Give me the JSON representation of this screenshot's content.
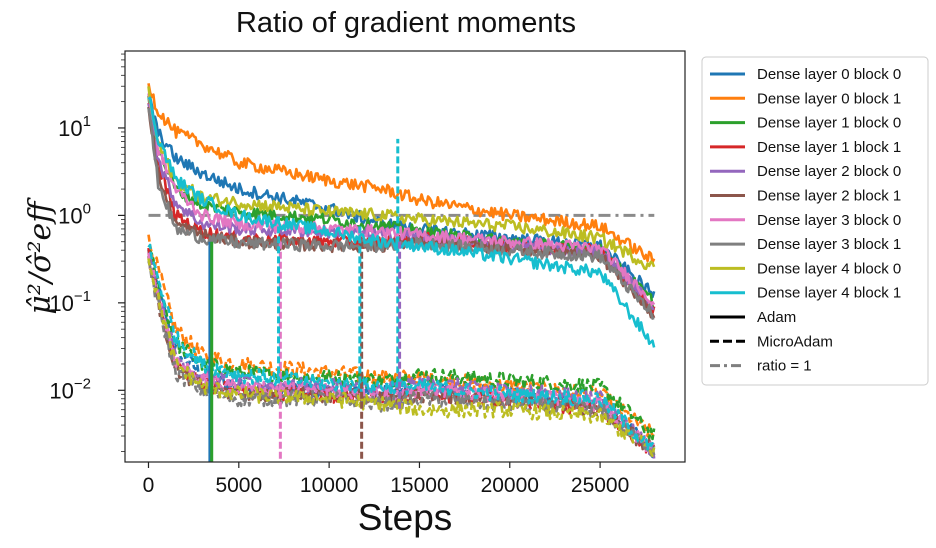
{
  "chart_data": {
    "type": "line",
    "title": "Ratio of gradient moments",
    "xlabel": "Steps",
    "ylabel": "μ̂²/σ̂²eff",
    "yscale": "log",
    "xlim": [
      -1300,
      29700
    ],
    "ylim_log10": [
      -2.82,
      1.88
    ],
    "x_ticks": [
      0,
      5000,
      10000,
      15000,
      20000,
      25000
    ],
    "x_tick_labels": [
      "0",
      "5000",
      "10000",
      "15000",
      "20000",
      "25000"
    ],
    "y_ticks_log10": [
      1,
      0,
      -1,
      -2
    ],
    "y_tick_labels": [
      "10^1",
      "10^0",
      "10^-1",
      "10^-2"
    ],
    "grid": false,
    "legend_position": "outside-right",
    "legend": [
      {
        "label": "Dense layer 0 block 0",
        "color": "#1f77b4",
        "style": "solid"
      },
      {
        "label": "Dense layer 0 block 1",
        "color": "#ff7f0e",
        "style": "solid"
      },
      {
        "label": "Dense layer 1 block 0",
        "color": "#2ca02c",
        "style": "solid"
      },
      {
        "label": "Dense layer 1 block 1",
        "color": "#d62728",
        "style": "solid"
      },
      {
        "label": "Dense layer 2 block 0",
        "color": "#9467bd",
        "style": "solid"
      },
      {
        "label": "Dense layer 2 block 1",
        "color": "#8c564b",
        "style": "solid"
      },
      {
        "label": "Dense layer 3 block 0",
        "color": "#e377c2",
        "style": "solid"
      },
      {
        "label": "Dense layer 3 block 1",
        "color": "#7f7f7f",
        "style": "solid"
      },
      {
        "label": "Dense layer 4 block 0",
        "color": "#bcbd22",
        "style": "solid"
      },
      {
        "label": "Dense layer 4 block 1",
        "color": "#17becf",
        "style": "solid"
      },
      {
        "label": "Adam",
        "color": "#000000",
        "style": "solid"
      },
      {
        "label": "MicroAdam",
        "color": "#000000",
        "style": "dashed"
      },
      {
        "label": "ratio = 1",
        "color": "#7f7f7f",
        "style": "dashdot"
      }
    ],
    "reference_line": {
      "label": "ratio = 1",
      "y": 1.0,
      "x_range": [
        0,
        28000
      ],
      "color": "#7f7f7f"
    },
    "adam_series": [
      {
        "name": "Dense layer 0 block 0",
        "color": "#1f77b4",
        "points": [
          [
            0,
            25
          ],
          [
            500,
            9
          ],
          [
            1500,
            4.5
          ],
          [
            3000,
            3
          ],
          [
            5000,
            2
          ],
          [
            10000,
            1.2
          ],
          [
            13000,
            0.8
          ],
          [
            15000,
            0.7
          ],
          [
            20000,
            0.55
          ],
          [
            25000,
            0.45
          ],
          [
            28000,
            0.12
          ]
        ]
      },
      {
        "name": "Dense layer 0 block 1",
        "color": "#ff7f0e",
        "points": [
          [
            0,
            33
          ],
          [
            500,
            16
          ],
          [
            1500,
            9
          ],
          [
            3000,
            6.5
          ],
          [
            5000,
            4
          ],
          [
            8000,
            3
          ],
          [
            10000,
            2.5
          ],
          [
            13000,
            2
          ],
          [
            15000,
            1.5
          ],
          [
            20000,
            1
          ],
          [
            25000,
            0.75
          ],
          [
            28000,
            0.3
          ]
        ]
      },
      {
        "name": "Dense layer 1 block 0",
        "color": "#2ca02c",
        "points": [
          [
            0,
            22
          ],
          [
            500,
            6
          ],
          [
            1500,
            2
          ],
          [
            3000,
            1.3
          ],
          [
            5000,
            1.1
          ],
          [
            10000,
            0.9
          ],
          [
            13000,
            0.75
          ],
          [
            15000,
            0.65
          ],
          [
            20000,
            0.5
          ],
          [
            25000,
            0.4
          ],
          [
            28000,
            0.1
          ]
        ]
      },
      {
        "name": "Dense layer 1 block 1",
        "color": "#d62728",
        "points": [
          [
            0,
            20
          ],
          [
            500,
            4
          ],
          [
            1500,
            1
          ],
          [
            3000,
            0.65
          ],
          [
            5000,
            0.55
          ],
          [
            10000,
            0.5
          ],
          [
            13000,
            0.5
          ],
          [
            15000,
            0.55
          ],
          [
            20000,
            0.45
          ],
          [
            25000,
            0.4
          ],
          [
            28000,
            0.08
          ]
        ]
      },
      {
        "name": "Dense layer 2 block 0",
        "color": "#9467bd",
        "points": [
          [
            0,
            21
          ],
          [
            500,
            4.5
          ],
          [
            1500,
            1.4
          ],
          [
            3000,
            0.8
          ],
          [
            5000,
            0.7
          ],
          [
            10000,
            0.65
          ],
          [
            13000,
            0.6
          ],
          [
            15000,
            0.55
          ],
          [
            20000,
            0.45
          ],
          [
            25000,
            0.38
          ],
          [
            28000,
            0.09
          ]
        ]
      },
      {
        "name": "Dense layer 2 block 1",
        "color": "#8c564b",
        "points": [
          [
            0,
            19
          ],
          [
            500,
            3
          ],
          [
            1500,
            0.8
          ],
          [
            3000,
            0.6
          ],
          [
            5000,
            0.5
          ],
          [
            10000,
            0.45
          ],
          [
            13000,
            0.45
          ],
          [
            15000,
            0.5
          ],
          [
            20000,
            0.42
          ],
          [
            25000,
            0.35
          ],
          [
            28000,
            0.07
          ]
        ]
      },
      {
        "name": "Dense layer 3 block 0",
        "color": "#e377c2",
        "points": [
          [
            0,
            24
          ],
          [
            500,
            6
          ],
          [
            1500,
            2
          ],
          [
            3000,
            1
          ],
          [
            5000,
            0.8
          ],
          [
            10000,
            0.7
          ],
          [
            13000,
            0.65
          ],
          [
            15000,
            0.6
          ],
          [
            20000,
            0.5
          ],
          [
            25000,
            0.42
          ],
          [
            28000,
            0.1
          ]
        ]
      },
      {
        "name": "Dense layer 3 block 1",
        "color": "#7f7f7f",
        "points": [
          [
            0,
            18
          ],
          [
            500,
            2.5
          ],
          [
            1500,
            0.7
          ],
          [
            3000,
            0.55
          ],
          [
            5000,
            0.48
          ],
          [
            10000,
            0.45
          ],
          [
            13000,
            0.45
          ],
          [
            15000,
            0.48
          ],
          [
            20000,
            0.4
          ],
          [
            25000,
            0.34
          ],
          [
            28000,
            0.07
          ]
        ]
      },
      {
        "name": "Dense layer 4 block 0",
        "color": "#bcbd22",
        "points": [
          [
            0,
            26
          ],
          [
            500,
            7
          ],
          [
            1500,
            2.5
          ],
          [
            3000,
            1.6
          ],
          [
            5000,
            1.4
          ],
          [
            10000,
            1.1
          ],
          [
            13000,
            1
          ],
          [
            15000,
            0.9
          ],
          [
            20000,
            0.75
          ],
          [
            25000,
            0.55
          ],
          [
            28000,
            0.25
          ]
        ]
      },
      {
        "name": "Dense layer 4 block 1",
        "color": "#17becf",
        "points": [
          [
            0,
            24
          ],
          [
            500,
            8
          ],
          [
            1500,
            2.6
          ],
          [
            3000,
            1.5
          ],
          [
            5000,
            1
          ],
          [
            10000,
            0.65
          ],
          [
            13000,
            0.5
          ],
          [
            15000,
            0.45
          ],
          [
            20000,
            0.32
          ],
          [
            25000,
            0.22
          ],
          [
            28000,
            0.032
          ]
        ]
      }
    ],
    "microadam_series": [
      {
        "name": "Dense layer 0 block 0",
        "color": "#1f77b4",
        "points": [
          [
            0,
            0.38
          ],
          [
            500,
            0.15
          ],
          [
            1500,
            0.03
          ],
          [
            3000,
            0.015
          ],
          [
            5000,
            0.011
          ],
          [
            10000,
            0.01
          ],
          [
            13000,
            0.01
          ],
          [
            15000,
            0.011
          ],
          [
            20000,
            0.009
          ],
          [
            25000,
            0.007
          ],
          [
            28000,
            0.002
          ]
        ]
      },
      {
        "name": "Dense layer 0 block 1",
        "color": "#ff7f0e",
        "points": [
          [
            0,
            0.52
          ],
          [
            500,
            0.25
          ],
          [
            1500,
            0.05
          ],
          [
            3000,
            0.025
          ],
          [
            5000,
            0.02
          ],
          [
            10000,
            0.016
          ],
          [
            13000,
            0.014
          ],
          [
            15000,
            0.014
          ],
          [
            20000,
            0.011
          ],
          [
            25000,
            0.009
          ],
          [
            28000,
            0.003
          ]
        ]
      },
      {
        "name": "Dense layer 1 block 0",
        "color": "#2ca02c",
        "points": [
          [
            0,
            0.42
          ],
          [
            500,
            0.18
          ],
          [
            1500,
            0.035
          ],
          [
            3000,
            0.02
          ],
          [
            5000,
            0.016
          ],
          [
            10000,
            0.014
          ],
          [
            13000,
            0.013
          ],
          [
            15000,
            0.015
          ],
          [
            20000,
            0.013
          ],
          [
            25000,
            0.011
          ],
          [
            28000,
            0.003
          ]
        ]
      },
      {
        "name": "Dense layer 1 block 1",
        "color": "#d62728",
        "points": [
          [
            0,
            0.35
          ],
          [
            500,
            0.12
          ],
          [
            1500,
            0.02
          ],
          [
            3000,
            0.012
          ],
          [
            5000,
            0.01
          ],
          [
            10000,
            0.009
          ],
          [
            13000,
            0.008
          ],
          [
            15000,
            0.009
          ],
          [
            20000,
            0.008
          ],
          [
            25000,
            0.006
          ],
          [
            28000,
            0.002
          ]
        ]
      },
      {
        "name": "Dense layer 2 block 0",
        "color": "#9467bd",
        "points": [
          [
            0,
            0.4
          ],
          [
            500,
            0.14
          ],
          [
            1500,
            0.025
          ],
          [
            3000,
            0.014
          ],
          [
            5000,
            0.012
          ],
          [
            10000,
            0.011
          ],
          [
            13000,
            0.01
          ],
          [
            15000,
            0.012
          ],
          [
            20000,
            0.01
          ],
          [
            25000,
            0.008
          ],
          [
            28000,
            0.002
          ]
        ]
      },
      {
        "name": "Dense layer 2 block 1",
        "color": "#8c564b",
        "points": [
          [
            0,
            0.33
          ],
          [
            500,
            0.11
          ],
          [
            1500,
            0.018
          ],
          [
            3000,
            0.011
          ],
          [
            5000,
            0.009
          ],
          [
            10000,
            0.009
          ],
          [
            13000,
            0.008
          ],
          [
            15000,
            0.009
          ],
          [
            20000,
            0.008
          ],
          [
            25000,
            0.006
          ],
          [
            28000,
            0.002
          ]
        ]
      },
      {
        "name": "Dense layer 3 block 0",
        "color": "#e377c2",
        "points": [
          [
            0,
            0.37
          ],
          [
            500,
            0.13
          ],
          [
            1500,
            0.022
          ],
          [
            3000,
            0.013
          ],
          [
            5000,
            0.011
          ],
          [
            10000,
            0.01
          ],
          [
            13000,
            0.009
          ],
          [
            15000,
            0.01
          ],
          [
            20000,
            0.009
          ],
          [
            25000,
            0.007
          ],
          [
            28000,
            0.002
          ]
        ]
      },
      {
        "name": "Dense layer 3 block 1",
        "color": "#7f7f7f",
        "points": [
          [
            0,
            0.3
          ],
          [
            500,
            0.1
          ],
          [
            1500,
            0.016
          ],
          [
            3000,
            0.01
          ],
          [
            5000,
            0.008
          ],
          [
            10000,
            0.008
          ],
          [
            13000,
            0.007
          ],
          [
            15000,
            0.008
          ],
          [
            20000,
            0.007
          ],
          [
            25000,
            0.006
          ],
          [
            28000,
            0.002
          ]
        ]
      },
      {
        "name": "Dense layer 4 block 0",
        "color": "#bcbd22",
        "points": [
          [
            0,
            0.34
          ],
          [
            500,
            0.12
          ],
          [
            1500,
            0.02
          ],
          [
            3000,
            0.011
          ],
          [
            5000,
            0.009
          ],
          [
            10000,
            0.008
          ],
          [
            13000,
            0.007
          ],
          [
            15000,
            0.006
          ],
          [
            20000,
            0.006
          ],
          [
            25000,
            0.005
          ],
          [
            28000,
            0.002
          ]
        ]
      },
      {
        "name": "Dense layer 4 block 1",
        "color": "#17becf",
        "points": [
          [
            0,
            0.45
          ],
          [
            500,
            0.2
          ],
          [
            1500,
            0.04
          ],
          [
            3000,
            0.02
          ],
          [
            5000,
            0.015
          ],
          [
            10000,
            0.012
          ],
          [
            13000,
            0.011
          ],
          [
            15000,
            0.011
          ],
          [
            20000,
            0.009
          ],
          [
            25000,
            0.008
          ],
          [
            28000,
            0.002
          ]
        ]
      }
    ],
    "spikes": [
      {
        "x": 3400,
        "y": 0.00016,
        "color": "#1f77b4",
        "style": "solid"
      },
      {
        "x": 3500,
        "y": 0.00016,
        "color": "#2ca02c",
        "style": "solid"
      },
      {
        "x": 7300,
        "y": 0.00016,
        "color": "#e377c2",
        "style": "dashed"
      },
      {
        "x": 7200,
        "y": 1.0,
        "color": "#17becf",
        "style": "dashed"
      },
      {
        "x": 11800,
        "y": 0.00016,
        "color": "#8c564b",
        "style": "dashed"
      },
      {
        "x": 11700,
        "y": 0.8,
        "color": "#17becf",
        "style": "dashed"
      },
      {
        "x": 13800,
        "y": 7.5,
        "color": "#17becf",
        "style": "dashed"
      },
      {
        "x": 13900,
        "y": 0.006,
        "color": "#9467bd",
        "style": "dashed"
      }
    ]
  }
}
